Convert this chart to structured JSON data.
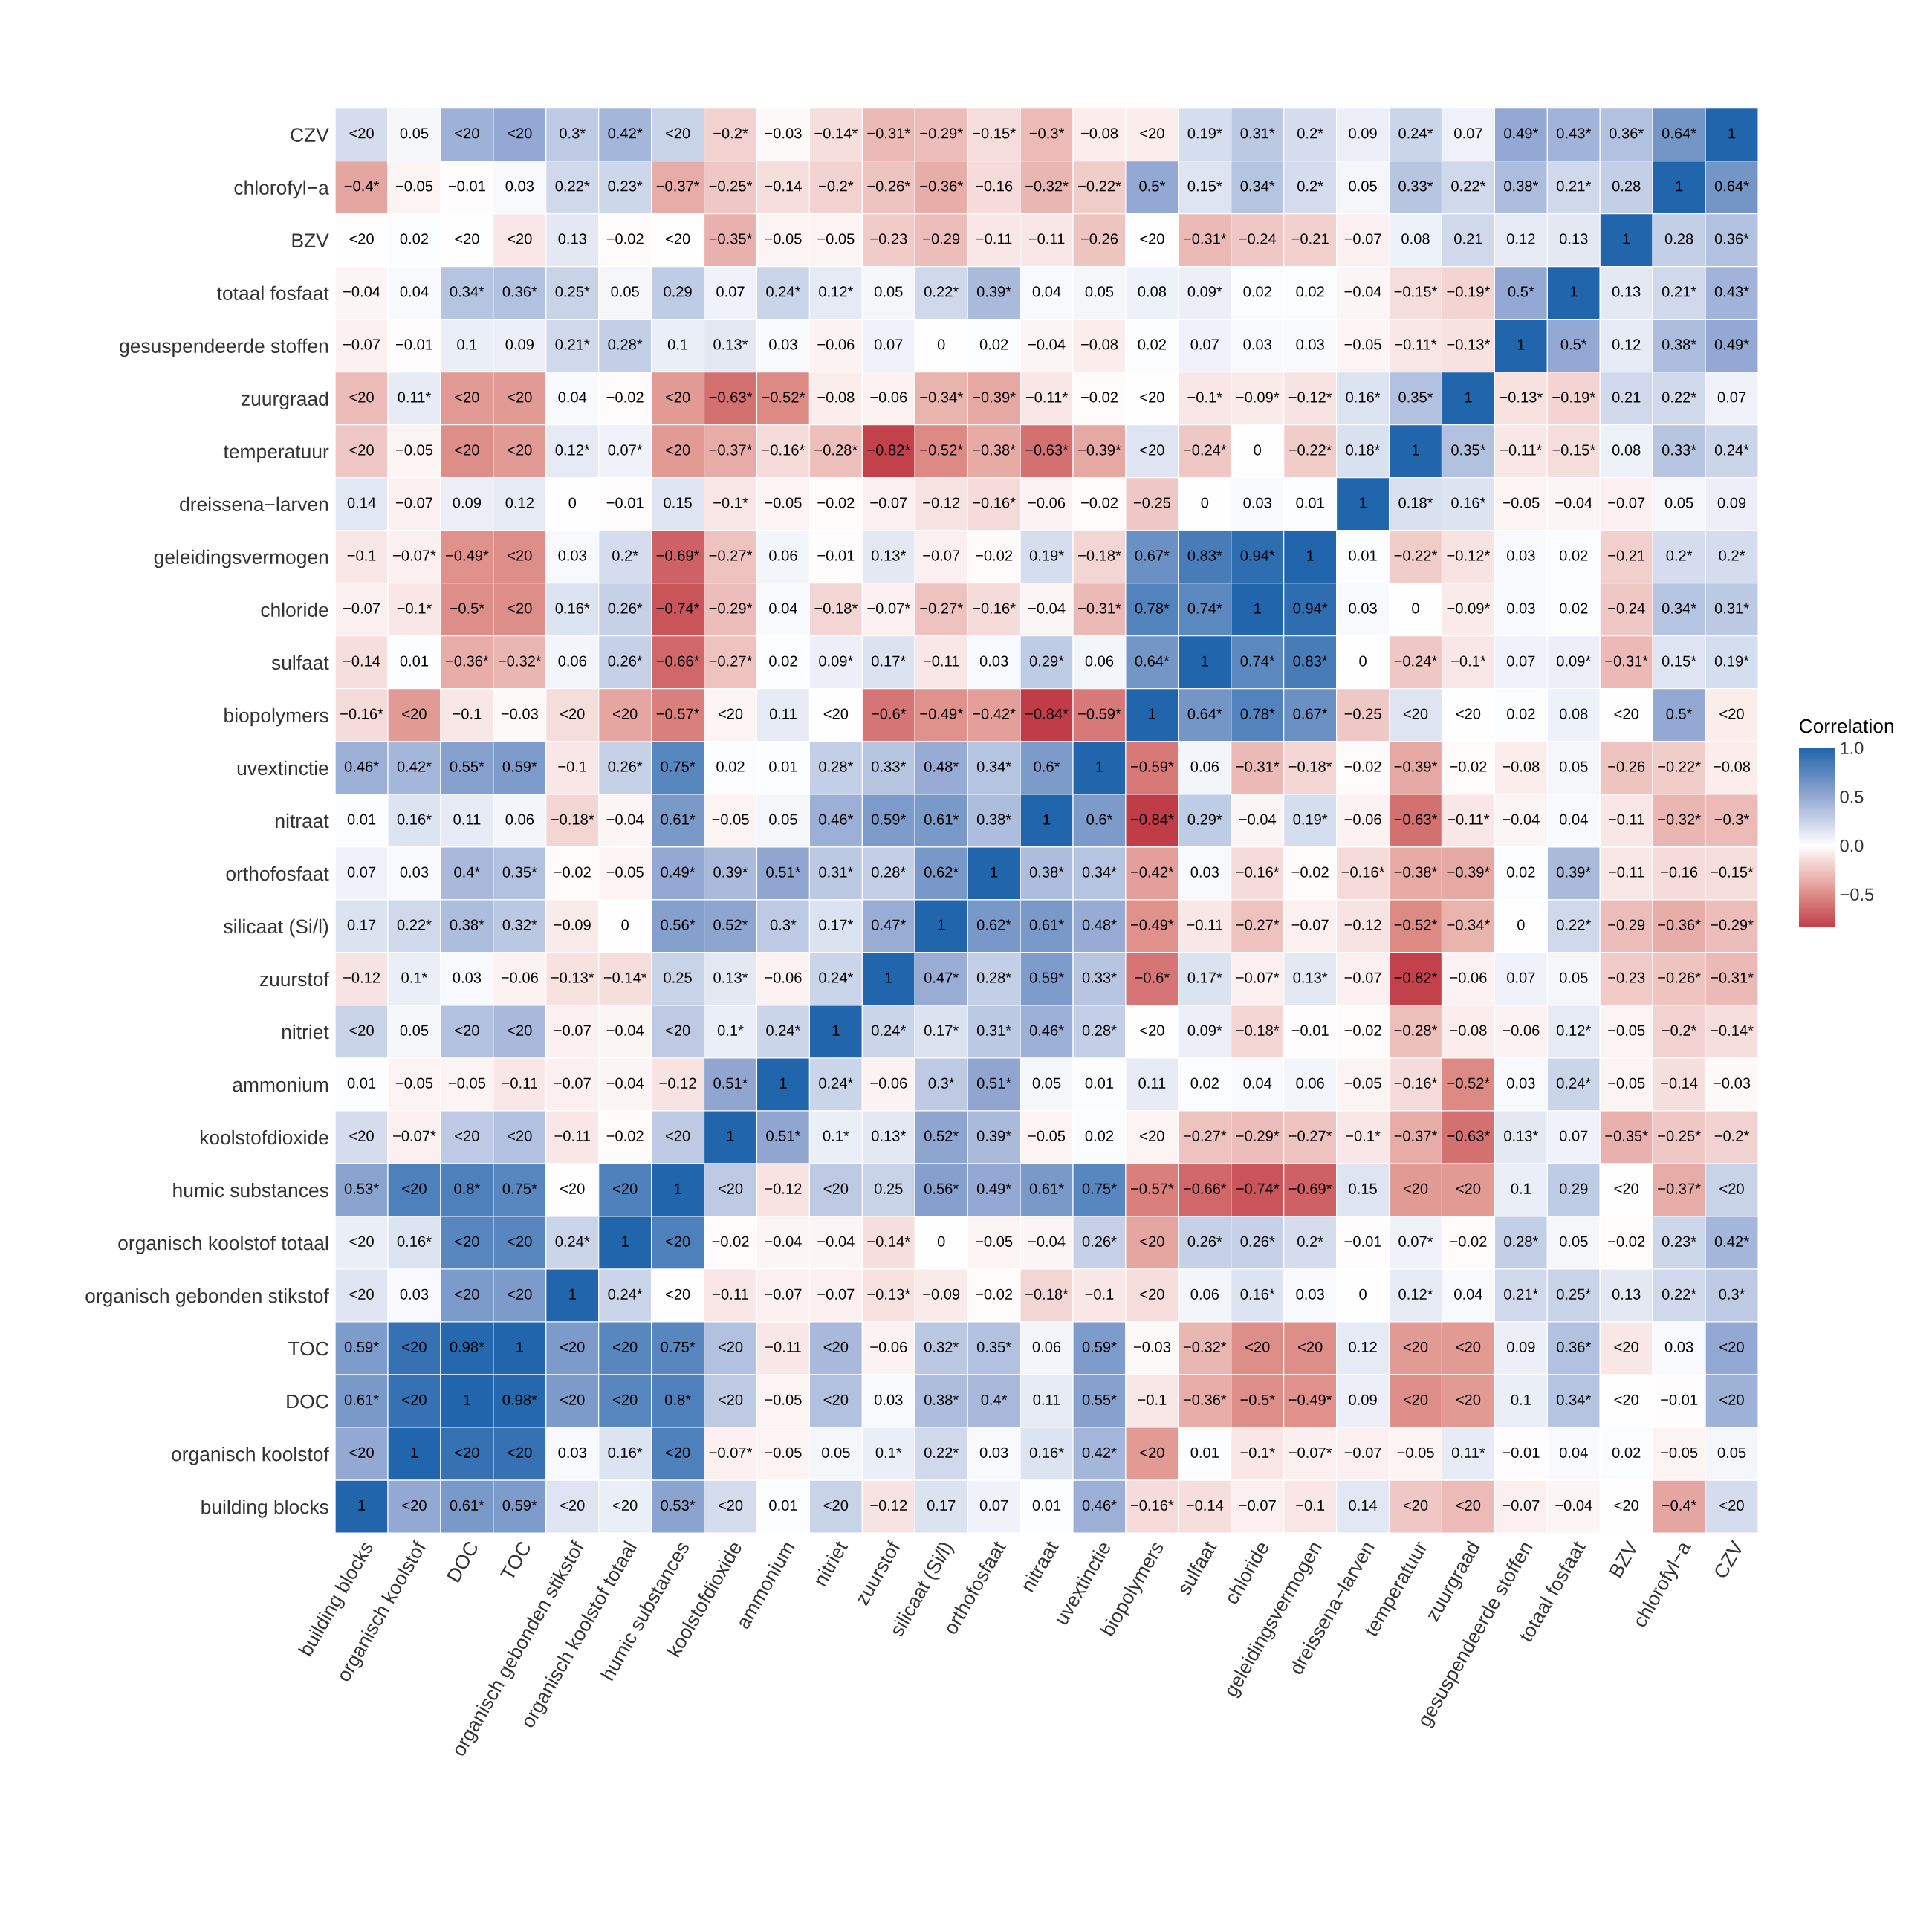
{
  "chart_data": {
    "type": "heatmap",
    "clabel": "Correlation",
    "categories": [
      "building blocks",
      "organisch koolstof",
      "DOC",
      "TOC",
      "organisch gebonden stikstof",
      "organisch koolstof totaal",
      "humic substances",
      "koolstofdioxide",
      "ammonium",
      "nitriet",
      "zuurstof",
      "silicaat (Si/l)",
      "orthofosfaat",
      "nitraat",
      "uvextinctie",
      "biopolymers",
      "sulfaat",
      "chloride",
      "geleidingsvermogen",
      "dreissena−larven",
      "temperatuur",
      "zuurgraad",
      "gesuspendeerde stoffen",
      "totaal fosfaat",
      "BZV",
      "chlorofyl−a",
      "CZV"
    ],
    "y_categories": [
      "CZV",
      "chlorofyl−a",
      "BZV",
      "totaal fosfaat",
      "gesuspendeerde stoffen",
      "zuurgraad",
      "temperatuur",
      "dreissena−larven",
      "geleidingsvermogen",
      "chloride",
      "sulfaat",
      "biopolymers",
      "uvextinctie",
      "nitraat",
      "orthofosfaat",
      "silicaat (Si/l)",
      "zuurstof",
      "nitriet",
      "ammonium",
      "koolstofdioxide",
      "humic substances",
      "organisch koolstof totaal",
      "organisch gebonden stikstof",
      "TOC",
      "DOC",
      "organisch koolstof",
      "building blocks"
    ],
    "cells": [
      [
        0.2,
        0.05,
        0.45,
        0.5,
        0.3,
        0.42,
        0.25,
        -0.2,
        -0.03,
        -0.14,
        -0.31,
        -0.29,
        -0.15,
        -0.3,
        -0.08,
        -0.08,
        0.19,
        0.31,
        0.2,
        0.09,
        0.24,
        0.07,
        0.49,
        0.43,
        0.36,
        0.64,
        1
      ],
      [
        -0.4,
        -0.05,
        -0.01,
        0.03,
        0.22,
        0.23,
        -0.37,
        -0.25,
        -0.14,
        -0.2,
        -0.26,
        -0.36,
        -0.16,
        -0.32,
        -0.22,
        0.5,
        0.15,
        0.34,
        0.2,
        0.05,
        0.33,
        0.22,
        0.38,
        0.21,
        0.28,
        1,
        0.64
      ],
      [
        0,
        0.02,
        0,
        -0.1,
        0.13,
        -0.02,
        0,
        -0.35,
        -0.05,
        -0.05,
        -0.23,
        -0.29,
        -0.11,
        -0.11,
        -0.26,
        0,
        -0.31,
        -0.24,
        -0.21,
        -0.07,
        0.08,
        0.21,
        0.12,
        0.13,
        1,
        0.28,
        0.36
      ],
      [
        -0.04,
        0.04,
        0.34,
        0.36,
        0.25,
        0.05,
        0.29,
        0.07,
        0.24,
        0.12,
        0.05,
        0.22,
        0.39,
        0.04,
        0.05,
        0.08,
        0.09,
        0.02,
        0.02,
        -0.04,
        -0.15,
        -0.19,
        0.5,
        1,
        0.13,
        0.21,
        0.43
      ],
      [
        -0.07,
        -0.01,
        0.1,
        0.09,
        0.21,
        0.28,
        0.1,
        0.13,
        0.03,
        -0.06,
        0.07,
        0,
        0.02,
        -0.04,
        -0.08,
        0.02,
        0.07,
        0.03,
        0.03,
        -0.05,
        -0.11,
        -0.13,
        1,
        0.5,
        0.12,
        0.38,
        0.49
      ],
      [
        -0.3,
        0.11,
        -0.45,
        -0.45,
        0.04,
        -0.02,
        -0.45,
        -0.63,
        -0.52,
        -0.08,
        -0.06,
        -0.34,
        -0.39,
        -0.11,
        -0.02,
        0,
        -0.1,
        -0.09,
        -0.12,
        0.16,
        0.35,
        1,
        -0.13,
        -0.19,
        0.21,
        0.22,
        0.07
      ],
      [
        -0.25,
        -0.05,
        -0.5,
        -0.45,
        0.12,
        0.07,
        -0.45,
        -0.37,
        -0.16,
        -0.28,
        -0.82,
        -0.52,
        -0.38,
        -0.63,
        -0.39,
        0.15,
        -0.24,
        0,
        -0.22,
        0.18,
        1,
        0.35,
        -0.11,
        -0.15,
        0.08,
        0.33,
        0.24
      ],
      [
        0.14,
        -0.07,
        0.09,
        0.12,
        0,
        -0.01,
        0.15,
        -0.1,
        -0.05,
        -0.02,
        -0.07,
        -0.12,
        -0.16,
        -0.06,
        -0.02,
        -0.25,
        0,
        0.03,
        0.01,
        1,
        0.18,
        0.16,
        -0.05,
        -0.04,
        -0.07,
        0.05,
        0.09
      ],
      [
        -0.1,
        -0.07,
        -0.49,
        -0.5,
        0.03,
        0.2,
        -0.69,
        -0.27,
        0.06,
        -0.01,
        0.13,
        -0.07,
        -0.02,
        0.19,
        -0.18,
        0.67,
        0.83,
        0.94,
        1,
        0.01,
        -0.22,
        -0.12,
        0.03,
        0.02,
        -0.21,
        0.2,
        0.2
      ],
      [
        -0.07,
        -0.1,
        -0.5,
        -0.5,
        0.16,
        0.26,
        -0.74,
        -0.29,
        0.04,
        -0.18,
        -0.07,
        -0.27,
        -0.16,
        -0.04,
        -0.31,
        0.78,
        0.74,
        1,
        0.94,
        0.03,
        0,
        -0.09,
        0.03,
        0.02,
        -0.24,
        0.34,
        0.31
      ],
      [
        -0.14,
        0.01,
        -0.36,
        -0.32,
        0.06,
        0.26,
        -0.66,
        -0.27,
        0.02,
        0.09,
        0.17,
        -0.11,
        0.03,
        0.29,
        0.06,
        0.64,
        1,
        0.74,
        0.83,
        0,
        -0.24,
        -0.1,
        0.07,
        0.09,
        -0.31,
        0.15,
        0.19
      ],
      [
        -0.16,
        -0.45,
        -0.1,
        -0.03,
        -0.15,
        -0.4,
        -0.57,
        -0.05,
        0.11,
        0,
        -0.6,
        -0.49,
        -0.42,
        -0.84,
        -0.59,
        1,
        0.64,
        0.78,
        0.67,
        -0.25,
        0.15,
        0,
        0.02,
        0.08,
        0,
        0.5,
        -0.08
      ],
      [
        0.46,
        0.42,
        0.55,
        0.59,
        -0.1,
        0.26,
        0.75,
        0.02,
        0.01,
        0.28,
        0.33,
        0.48,
        0.34,
        0.6,
        1,
        -0.59,
        0.06,
        -0.31,
        -0.18,
        -0.02,
        -0.39,
        -0.02,
        -0.08,
        0.05,
        -0.26,
        -0.22,
        -0.08
      ],
      [
        0.01,
        0.16,
        0.11,
        0.06,
        -0.18,
        -0.04,
        0.61,
        -0.05,
        0.05,
        0.46,
        0.59,
        0.61,
        0.38,
        1,
        0.6,
        -0.84,
        0.29,
        -0.04,
        0.19,
        -0.06,
        -0.63,
        -0.11,
        -0.04,
        0.04,
        -0.11,
        -0.32,
        -0.3
      ],
      [
        0.07,
        0.03,
        0.4,
        0.35,
        -0.02,
        -0.05,
        0.49,
        0.39,
        0.51,
        0.31,
        0.28,
        0.62,
        1,
        0.38,
        0.34,
        -0.42,
        0.03,
        -0.16,
        -0.02,
        -0.16,
        -0.38,
        -0.39,
        0.02,
        0.39,
        -0.11,
        -0.16,
        -0.15
      ],
      [
        0.17,
        0.22,
        0.38,
        0.32,
        -0.09,
        0,
        0.56,
        0.52,
        0.3,
        0.17,
        0.47,
        1,
        0.62,
        0.61,
        0.48,
        -0.49,
        -0.11,
        -0.27,
        -0.07,
        -0.12,
        -0.52,
        -0.34,
        0,
        0.22,
        -0.29,
        -0.36,
        -0.29
      ],
      [
        -0.12,
        0.1,
        0.03,
        -0.06,
        -0.13,
        -0.14,
        0.25,
        0.13,
        -0.06,
        0.24,
        1,
        0.47,
        0.28,
        0.59,
        0.33,
        -0.6,
        0.17,
        -0.07,
        0.13,
        -0.07,
        -0.82,
        -0.06,
        0.07,
        0.05,
        -0.23,
        -0.26,
        -0.31
      ],
      [
        0.25,
        0.05,
        0.35,
        0.4,
        -0.07,
        -0.04,
        0.3,
        0.1,
        0.24,
        1,
        0.24,
        0.17,
        0.31,
        0.46,
        0.28,
        0,
        0.09,
        -0.18,
        -0.01,
        -0.02,
        -0.28,
        -0.08,
        -0.06,
        0.12,
        -0.05,
        -0.2,
        -0.14
      ],
      [
        0.01,
        -0.05,
        -0.05,
        -0.11,
        -0.07,
        -0.04,
        -0.12,
        0.51,
        1,
        0.24,
        -0.06,
        0.3,
        0.51,
        0.05,
        0.01,
        0.11,
        0.02,
        0.04,
        0.06,
        -0.05,
        -0.16,
        -0.52,
        0.03,
        0.24,
        -0.05,
        -0.14,
        -0.03
      ],
      [
        0.2,
        -0.07,
        0.3,
        0.35,
        -0.11,
        -0.02,
        0.3,
        1,
        0.51,
        0.1,
        0.13,
        0.52,
        0.39,
        -0.05,
        0.02,
        -0.05,
        -0.27,
        -0.29,
        -0.27,
        -0.1,
        -0.37,
        -0.63,
        0.13,
        0.07,
        -0.35,
        -0.25,
        -0.2
      ],
      [
        0.53,
        0.8,
        0.8,
        0.75,
        0,
        0.8,
        1,
        0.3,
        -0.12,
        0.3,
        0.25,
        0.56,
        0.49,
        0.61,
        0.75,
        -0.57,
        -0.66,
        -0.74,
        -0.69,
        0.15,
        -0.45,
        -0.45,
        0.1,
        0.29,
        0,
        -0.37,
        0.25
      ],
      [
        0.1,
        0.16,
        0.75,
        0.75,
        0.24,
        1,
        0.8,
        -0.02,
        -0.04,
        -0.04,
        -0.14,
        0,
        -0.05,
        -0.04,
        0.26,
        -0.4,
        0.26,
        0.26,
        0.2,
        -0.01,
        0.07,
        -0.02,
        0.28,
        0.05,
        -0.02,
        0.23,
        0.42
      ],
      [
        0.15,
        0.03,
        0.6,
        0.6,
        1,
        0.24,
        0,
        -0.11,
        -0.07,
        -0.07,
        -0.13,
        -0.09,
        -0.02,
        -0.18,
        -0.1,
        -0.15,
        0.06,
        0.16,
        0.03,
        0,
        0.12,
        0.04,
        0.21,
        0.25,
        0.13,
        0.22,
        0.3
      ],
      [
        0.59,
        0.9,
        0.98,
        1,
        0.6,
        0.75,
        0.75,
        0.35,
        -0.11,
        0.4,
        -0.06,
        0.32,
        0.35,
        0.06,
        0.59,
        -0.03,
        -0.32,
        -0.5,
        -0.5,
        0.12,
        -0.45,
        -0.45,
        0.09,
        0.36,
        -0.1,
        0.03,
        0.5
      ],
      [
        0.61,
        0.9,
        1,
        0.98,
        0.6,
        0.75,
        0.8,
        0.3,
        -0.05,
        0.35,
        0.03,
        0.38,
        0.4,
        0.11,
        0.55,
        -0.1,
        -0.36,
        -0.5,
        -0.49,
        0.09,
        -0.5,
        -0.45,
        0.1,
        0.34,
        0,
        -0.01,
        0.45
      ],
      [
        0.5,
        1,
        0.9,
        0.9,
        0.03,
        0.16,
        0.8,
        -0.07,
        -0.05,
        0.05,
        0.1,
        0.22,
        0.03,
        0.16,
        0.42,
        -0.45,
        0.01,
        -0.1,
        -0.07,
        -0.07,
        -0.05,
        0.11,
        -0.01,
        0.04,
        0.02,
        -0.05,
        0.05
      ],
      [
        1,
        0.5,
        0.61,
        0.59,
        0.15,
        0.1,
        0.53,
        0.2,
        0.01,
        0.25,
        -0.12,
        0.17,
        0.07,
        0.01,
        0.46,
        -0.16,
        -0.14,
        -0.07,
        -0.1,
        0.14,
        -0.25,
        -0.3,
        -0.07,
        -0.04,
        0,
        -0.4,
        0.2
      ]
    ],
    "cell_labels": [
      [
        "<20",
        "0.05",
        "<20",
        "<20",
        "0.3*",
        "0.42*",
        "<20",
        "−0.2*",
        "−0.03",
        "−0.14*",
        "−0.31*",
        "−0.29*",
        "−0.15*",
        "−0.3*",
        "−0.08",
        "<20",
        "0.19*",
        "0.31*",
        "0.2*",
        "0.09",
        "0.24*",
        "0.07",
        "0.49*",
        "0.43*",
        "0.36*",
        "0.64*",
        "1"
      ],
      [
        "−0.4*",
        "−0.05",
        "−0.01",
        "0.03",
        "0.22*",
        "0.23*",
        "−0.37*",
        "−0.25*",
        "−0.14",
        "−0.2*",
        "−0.26*",
        "−0.36*",
        "−0.16",
        "−0.32*",
        "−0.22*",
        "0.5*",
        "0.15*",
        "0.34*",
        "0.2*",
        "0.05",
        "0.33*",
        "0.22*",
        "0.38*",
        "0.21*",
        "0.28",
        "1",
        "0.64*"
      ],
      [
        "<20",
        "0.02",
        "<20",
        "<20",
        "0.13",
        "−0.02",
        "<20",
        "−0.35*",
        "−0.05",
        "−0.05",
        "−0.23",
        "−0.29",
        "−0.11",
        "−0.11",
        "−0.26",
        "<20",
        "−0.31*",
        "−0.24",
        "−0.21",
        "−0.07",
        "0.08",
        "0.21",
        "0.12",
        "0.13",
        "1",
        "0.28",
        "0.36*"
      ],
      [
        "−0.04",
        "0.04",
        "0.34*",
        "0.36*",
        "0.25*",
        "0.05",
        "0.29",
        "0.07",
        "0.24*",
        "0.12*",
        "0.05",
        "0.22*",
        "0.39*",
        "0.04",
        "0.05",
        "0.08",
        "0.09*",
        "0.02",
        "0.02",
        "−0.04",
        "−0.15*",
        "−0.19*",
        "0.5*",
        "1",
        "0.13",
        "0.21*",
        "0.43*"
      ],
      [
        "−0.07",
        "−0.01",
        "0.1",
        "0.09",
        "0.21*",
        "0.28*",
        "0.1",
        "0.13*",
        "0.03",
        "−0.06",
        "0.07",
        "0",
        "0.02",
        "−0.04",
        "−0.08",
        "0.02",
        "0.07",
        "0.03",
        "0.03",
        "−0.05",
        "−0.11*",
        "−0.13*",
        "1",
        "0.5*",
        "0.12",
        "0.38*",
        "0.49*"
      ],
      [
        "<20",
        "0.11*",
        "<20",
        "<20",
        "0.04",
        "−0.02",
        "<20",
        "−0.63*",
        "−0.52*",
        "−0.08",
        "−0.06",
        "−0.34*",
        "−0.39*",
        "−0.11*",
        "−0.02",
        "<20",
        "−0.1*",
        "−0.09*",
        "−0.12*",
        "0.16*",
        "0.35*",
        "1",
        "−0.13*",
        "−0.19*",
        "0.21",
        "0.22*",
        "0.07"
      ],
      [
        "<20",
        "−0.05",
        "<20",
        "<20",
        "0.12*",
        "0.07*",
        "<20",
        "−0.37*",
        "−0.16*",
        "−0.28*",
        "−0.82*",
        "−0.52*",
        "−0.38*",
        "−0.63*",
        "−0.39*",
        "<20",
        "−0.24*",
        "0",
        "−0.22*",
        "0.18*",
        "1",
        "0.35*",
        "−0.11*",
        "−0.15*",
        "0.08",
        "0.33*",
        "0.24*"
      ],
      [
        "0.14",
        "−0.07",
        "0.09",
        "0.12",
        "0",
        "−0.01",
        "0.15",
        "−0.1*",
        "−0.05",
        "−0.02",
        "−0.07",
        "−0.12",
        "−0.16*",
        "−0.06",
        "−0.02",
        "−0.25",
        "0",
        "0.03",
        "0.01",
        "1",
        "0.18*",
        "0.16*",
        "−0.05",
        "−0.04",
        "−0.07",
        "0.05",
        "0.09"
      ],
      [
        "−0.1",
        "−0.07*",
        "−0.49*",
        "<20",
        "0.03",
        "0.2*",
        "−0.69*",
        "−0.27*",
        "0.06",
        "−0.01",
        "0.13*",
        "−0.07",
        "−0.02",
        "0.19*",
        "−0.18*",
        "0.67*",
        "0.83*",
        "0.94*",
        "1",
        "0.01",
        "−0.22*",
        "−0.12*",
        "0.03",
        "0.02",
        "−0.21",
        "0.2*",
        "0.2*"
      ],
      [
        "−0.07",
        "−0.1*",
        "−0.5*",
        "<20",
        "0.16*",
        "0.26*",
        "−0.74*",
        "−0.29*",
        "0.04",
        "−0.18*",
        "−0.07*",
        "−0.27*",
        "−0.16*",
        "−0.04",
        "−0.31*",
        "0.78*",
        "0.74*",
        "1",
        "0.94*",
        "0.03",
        "0",
        "−0.09*",
        "0.03",
        "0.02",
        "−0.24",
        "0.34*",
        "0.31*"
      ],
      [
        "−0.14",
        "0.01",
        "−0.36*",
        "−0.32*",
        "0.06",
        "0.26*",
        "−0.66*",
        "−0.27*",
        "0.02",
        "0.09*",
        "0.17*",
        "−0.11",
        "0.03",
        "0.29*",
        "0.06",
        "0.64*",
        "1",
        "0.74*",
        "0.83*",
        "0",
        "−0.24*",
        "−0.1*",
        "0.07",
        "0.09*",
        "−0.31*",
        "0.15*",
        "0.19*"
      ],
      [
        "−0.16*",
        "<20",
        "−0.1",
        "−0.03",
        "<20",
        "<20",
        "−0.57*",
        "<20",
        "0.11",
        "<20",
        "−0.6*",
        "−0.49*",
        "−0.42*",
        "−0.84*",
        "−0.59*",
        "1",
        "0.64*",
        "0.78*",
        "0.67*",
        "−0.25",
        "<20",
        "<20",
        "0.02",
        "0.08",
        "<20",
        "0.5*",
        "<20"
      ],
      [
        "0.46*",
        "0.42*",
        "0.55*",
        "0.59*",
        "−0.1",
        "0.26*",
        "0.75*",
        "0.02",
        "0.01",
        "0.28*",
        "0.33*",
        "0.48*",
        "0.34*",
        "0.6*",
        "1",
        "−0.59*",
        "0.06",
        "−0.31*",
        "−0.18*",
        "−0.02",
        "−0.39*",
        "−0.02",
        "−0.08",
        "0.05",
        "−0.26",
        "−0.22*",
        "−0.08"
      ],
      [
        "0.01",
        "0.16*",
        "0.11",
        "0.06",
        "−0.18*",
        "−0.04",
        "0.61*",
        "−0.05",
        "0.05",
        "0.46*",
        "0.59*",
        "0.61*",
        "0.38*",
        "1",
        "0.6*",
        "−0.84*",
        "0.29*",
        "−0.04",
        "0.19*",
        "−0.06",
        "−0.63*",
        "−0.11*",
        "−0.04",
        "0.04",
        "−0.11",
        "−0.32*",
        "−0.3*"
      ],
      [
        "0.07",
        "0.03",
        "0.4*",
        "0.35*",
        "−0.02",
        "−0.05",
        "0.49*",
        "0.39*",
        "0.51*",
        "0.31*",
        "0.28*",
        "0.62*",
        "1",
        "0.38*",
        "0.34*",
        "−0.42*",
        "0.03",
        "−0.16*",
        "−0.02",
        "−0.16*",
        "−0.38*",
        "−0.39*",
        "0.02",
        "0.39*",
        "−0.11",
        "−0.16",
        "−0.15*"
      ],
      [
        "0.17",
        "0.22*",
        "0.38*",
        "0.32*",
        "−0.09",
        "0",
        "0.56*",
        "0.52*",
        "0.3*",
        "0.17*",
        "0.47*",
        "1",
        "0.62*",
        "0.61*",
        "0.48*",
        "−0.49*",
        "−0.11",
        "−0.27*",
        "−0.07",
        "−0.12",
        "−0.52*",
        "−0.34*",
        "0",
        "0.22*",
        "−0.29",
        "−0.36*",
        "−0.29*"
      ],
      [
        "−0.12",
        "0.1*",
        "0.03",
        "−0.06",
        "−0.13*",
        "−0.14*",
        "0.25",
        "0.13*",
        "−0.06",
        "0.24*",
        "1",
        "0.47*",
        "0.28*",
        "0.59*",
        "0.33*",
        "−0.6*",
        "0.17*",
        "−0.07*",
        "0.13*",
        "−0.07",
        "−0.82*",
        "−0.06",
        "0.07",
        "0.05",
        "−0.23",
        "−0.26*",
        "−0.31*"
      ],
      [
        "<20",
        "0.05",
        "<20",
        "<20",
        "−0.07",
        "−0.04",
        "<20",
        "0.1*",
        "0.24*",
        "1",
        "0.24*",
        "0.17*",
        "0.31*",
        "0.46*",
        "0.28*",
        "<20",
        "0.09*",
        "−0.18*",
        "−0.01",
        "−0.02",
        "−0.28*",
        "−0.08",
        "−0.06",
        "0.12*",
        "−0.05",
        "−0.2*",
        "−0.14*"
      ],
      [
        "0.01",
        "−0.05",
        "−0.05",
        "−0.11",
        "−0.07",
        "−0.04",
        "−0.12",
        "0.51*",
        "1",
        "0.24*",
        "−0.06",
        "0.3*",
        "0.51*",
        "0.05",
        "0.01",
        "0.11",
        "0.02",
        "0.04",
        "0.06",
        "−0.05",
        "−0.16*",
        "−0.52*",
        "0.03",
        "0.24*",
        "−0.05",
        "−0.14",
        "−0.03"
      ],
      [
        "<20",
        "−0.07*",
        "<20",
        "<20",
        "−0.11",
        "−0.02",
        "<20",
        "1",
        "0.51*",
        "0.1*",
        "0.13*",
        "0.52*",
        "0.39*",
        "−0.05",
        "0.02",
        "<20",
        "−0.27*",
        "−0.29*",
        "−0.27*",
        "−0.1*",
        "−0.37*",
        "−0.63*",
        "0.13*",
        "0.07",
        "−0.35*",
        "−0.25*",
        "−0.2*"
      ],
      [
        "0.53*",
        "<20",
        "0.8*",
        "0.75*",
        "<20",
        "<20",
        "1",
        "<20",
        "−0.12",
        "<20",
        "0.25",
        "0.56*",
        "0.49*",
        "0.61*",
        "0.75*",
        "−0.57*",
        "−0.66*",
        "−0.74*",
        "−0.69*",
        "0.15",
        "<20",
        "<20",
        "0.1",
        "0.29",
        "<20",
        "−0.37*",
        "<20"
      ],
      [
        "<20",
        "0.16*",
        "<20",
        "<20",
        "0.24*",
        "1",
        "<20",
        "−0.02",
        "−0.04",
        "−0.04",
        "−0.14*",
        "0",
        "−0.05",
        "−0.04",
        "0.26*",
        "<20",
        "0.26*",
        "0.26*",
        "0.2*",
        "−0.01",
        "0.07*",
        "−0.02",
        "0.28*",
        "0.05",
        "−0.02",
        "0.23*",
        "0.42*"
      ],
      [
        "<20",
        "0.03",
        "<20",
        "<20",
        "1",
        "0.24*",
        "<20",
        "−0.11",
        "−0.07",
        "−0.07",
        "−0.13*",
        "−0.09",
        "−0.02",
        "−0.18*",
        "−0.1",
        "<20",
        "0.06",
        "0.16*",
        "0.03",
        "0",
        "0.12*",
        "0.04",
        "0.21*",
        "0.25*",
        "0.13",
        "0.22*",
        "0.3*"
      ],
      [
        "0.59*",
        "<20",
        "0.98*",
        "1",
        "<20",
        "<20",
        "0.75*",
        "<20",
        "−0.11",
        "<20",
        "−0.06",
        "0.32*",
        "0.35*",
        "0.06",
        "0.59*",
        "−0.03",
        "−0.32*",
        "<20",
        "<20",
        "0.12",
        "<20",
        "<20",
        "0.09",
        "0.36*",
        "<20",
        "0.03",
        "<20"
      ],
      [
        "0.61*",
        "<20",
        "1",
        "0.98*",
        "<20",
        "<20",
        "0.8*",
        "<20",
        "−0.05",
        "<20",
        "0.03",
        "0.38*",
        "0.4*",
        "0.11",
        "0.55*",
        "−0.1",
        "−0.36*",
        "−0.5*",
        "−0.49*",
        "0.09",
        "<20",
        "<20",
        "0.1",
        "0.34*",
        "<20",
        "−0.01",
        "<20"
      ],
      [
        "<20",
        "1",
        "<20",
        "<20",
        "0.03",
        "0.16*",
        "<20",
        "−0.07*",
        "−0.05",
        "0.05",
        "0.1*",
        "0.22*",
        "0.03",
        "0.16*",
        "0.42*",
        "<20",
        "0.01",
        "−0.1*",
        "−0.07*",
        "−0.07",
        "−0.05",
        "0.11*",
        "−0.01",
        "0.04",
        "0.02",
        "−0.05",
        "0.05"
      ],
      [
        "1",
        "<20",
        "0.61*",
        "0.59*",
        "<20",
        "<20",
        "0.53*",
        "<20",
        "0.01",
        "<20",
        "−0.12",
        "0.17",
        "0.07",
        "0.01",
        "0.46*",
        "−0.16*",
        "−0.14",
        "−0.07",
        "−0.1",
        "0.14",
        "<20",
        "<20",
        "−0.07",
        "−0.04",
        "<20",
        "−0.4*",
        "<20"
      ]
    ],
    "clim": [
      -0.84,
      1
    ],
    "cticks": [
      {
        "value": -0.5,
        "label": "−0.5"
      },
      {
        "value": 0,
        "label": "0.0"
      },
      {
        "value": 0.5,
        "label": "0.5"
      },
      {
        "value": 1,
        "label": "1.0"
      }
    ]
  }
}
